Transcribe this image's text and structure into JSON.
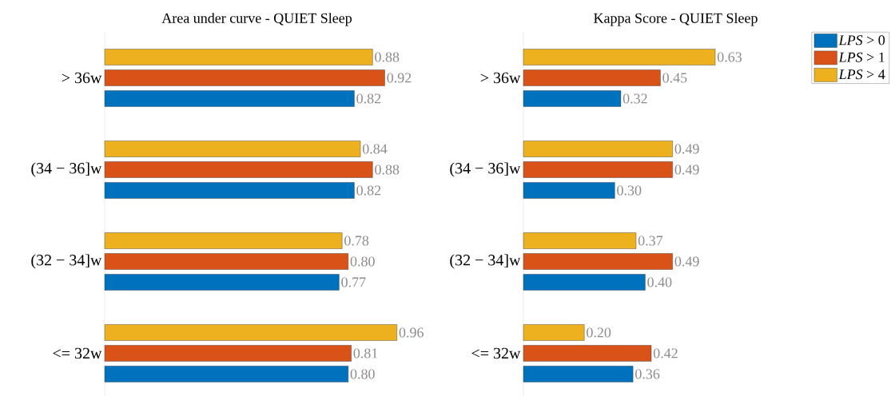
{
  "chart_data": [
    {
      "type": "bar",
      "orientation": "horizontal",
      "title": "Area under curve - QUIET Sleep",
      "categories": [
        "> 36w",
        "(34 − 36]w",
        "(32 − 34]w",
        "<= 32w"
      ],
      "tick_labels": "y",
      "series": [
        {
          "color": "#0072bd",
          "values": [
            0.82,
            0.82,
            0.77,
            0.8
          ],
          "value_labels": [
            "0.82",
            "0.82",
            "0.77",
            "0.80"
          ]
        },
        {
          "color": "#d95319",
          "values": [
            0.92,
            0.88,
            0.8,
            0.81
          ],
          "value_labels": [
            "0.92",
            "0.88",
            "0.80",
            "0.81"
          ]
        },
        {
          "color": "#edb120",
          "values": [
            0.88,
            0.84,
            0.78,
            0.96
          ],
          "value_labels": [
            "0.88",
            "0.84",
            "0.78",
            "0.96"
          ]
        }
      ]
    },
    {
      "type": "bar",
      "orientation": "horizontal",
      "title": "Kappa Score - QUIET Sleep",
      "categories": [
        "> 36w",
        "(34 − 36]w",
        "(32 − 34]w",
        "<= 32w"
      ],
      "tick_labels": "y",
      "legend": "top right",
      "series": [
        {
          "name": "*LPS* > 0",
          "color": "#0072bd",
          "values": [
            0.32,
            0.3,
            0.4,
            0.36
          ],
          "value_labels": [
            "0.32",
            "0.30",
            "0.40",
            "0.36"
          ]
        },
        {
          "name": "*LPS* > 1",
          "color": "#d95319",
          "values": [
            0.45,
            0.49,
            0.49,
            0.42
          ],
          "value_labels": [
            "0.45",
            "0.49",
            "0.49",
            "0.42"
          ]
        },
        {
          "name": "*LPS* > 4",
          "color": "#edb120",
          "values": [
            0.63,
            0.49,
            0.37,
            0.2
          ],
          "value_labels": [
            "0.63",
            "0.49",
            "0.37",
            "0.20"
          ]
        }
      ]
    }
  ]
}
